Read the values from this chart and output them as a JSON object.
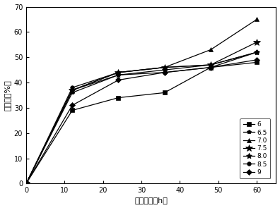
{
  "x": [
    0,
    12,
    24,
    36,
    48,
    60
  ],
  "series": [
    {
      "label": "6",
      "marker": "s",
      "values": [
        0,
        29,
        34,
        36,
        46,
        48
      ]
    },
    {
      "label": "6.5",
      "marker": "p",
      "values": [
        0,
        36,
        43,
        44,
        46,
        52
      ]
    },
    {
      "label": "7.0",
      "marker": "^",
      "values": [
        0,
        37,
        44,
        46,
        53,
        65
      ]
    },
    {
      "label": "7.5",
      "marker": "x",
      "values": [
        0,
        37,
        44,
        46,
        47,
        56
      ]
    },
    {
      "label": "8.0",
      "marker": "star",
      "values": [
        0,
        37,
        43,
        45,
        47,
        52
      ]
    },
    {
      "label": "8.5",
      "marker": "o",
      "values": [
        0,
        38,
        44,
        46,
        47,
        52
      ]
    },
    {
      "label": "9",
      "marker": "D",
      "values": [
        0,
        31,
        41,
        44,
        46,
        49
      ]
    }
  ],
  "xlabel": "培养时间（h）",
  "ylabel": "降解率（%）",
  "xlim": [
    0,
    65
  ],
  "ylim": [
    0,
    70
  ],
  "xticks": [
    0,
    10,
    20,
    30,
    40,
    50,
    60
  ],
  "yticks": [
    0,
    10,
    20,
    30,
    40,
    50,
    60,
    70
  ],
  "legend_labels": [
    "6",
    "6.5",
    "7.0",
    "7.5",
    "8.0",
    "8.5",
    "9"
  ],
  "line_color": "black",
  "background_color": "#ffffff",
  "markersize": 4.5,
  "linewidth": 0.9
}
